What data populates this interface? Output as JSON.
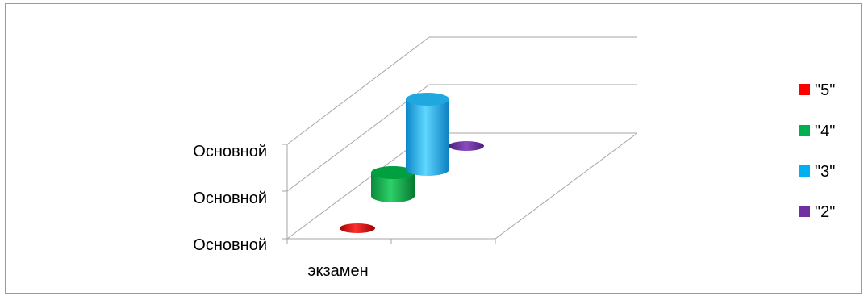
{
  "chart_data": {
    "type": "bar",
    "subtype": "3d-cylinder",
    "categories": [
      "экзамен"
    ],
    "series": [
      {
        "name": "\"5\"",
        "values": [
          0
        ],
        "color": "#ff0000"
      },
      {
        "name": "\"4\"",
        "values": [
          0.5
        ],
        "color": "#00b050"
      },
      {
        "name": "\"3\"",
        "values": [
          1.5
        ],
        "color": "#00b0f0"
      },
      {
        "name": "\"2\"",
        "values": [
          0
        ],
        "color": "#7030a0"
      }
    ],
    "y_tick_labels": [
      "Основной",
      "Основной",
      "Основной"
    ],
    "ylim": [
      0,
      2
    ],
    "grid": true,
    "legend_position": "right"
  }
}
